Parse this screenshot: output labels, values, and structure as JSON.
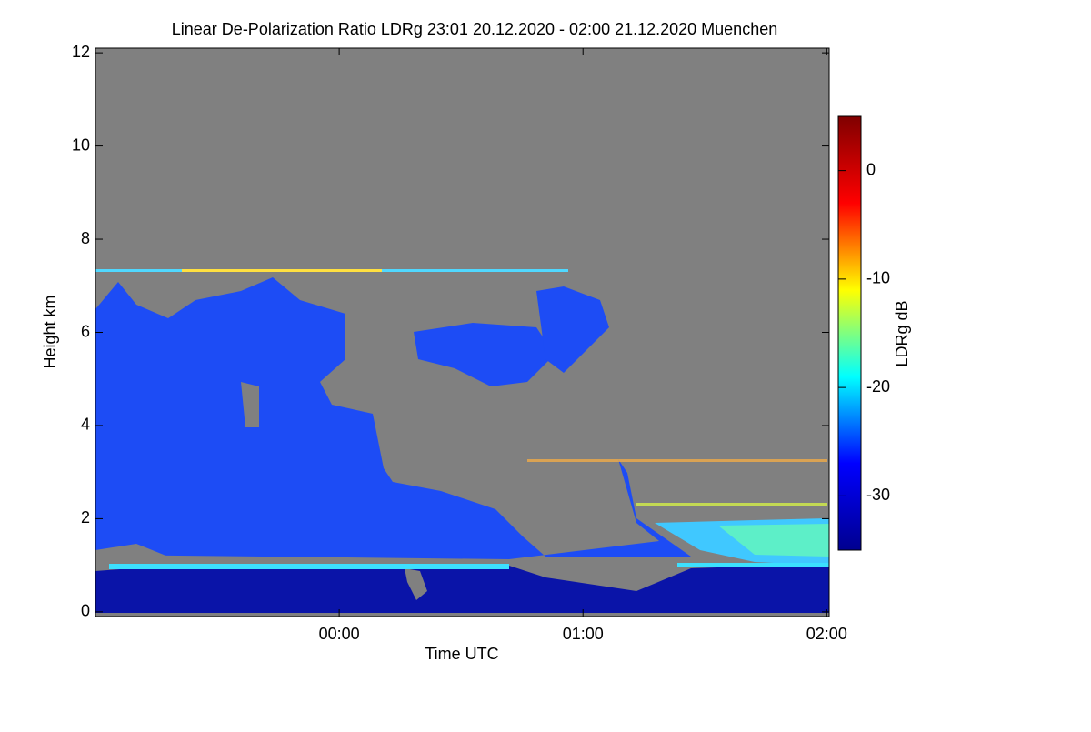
{
  "chart_data": {
    "type": "heatmap",
    "title": "Linear De-Polarization Ratio LDRg   23:01 20.12.2020 - 02:00 21.12.2020 Muenchen",
    "x_label": "Time UTC",
    "y_label": "Height km",
    "colorbar_label": "LDRg dB",
    "xlim": [
      23.0,
      26.01
    ],
    "xticks": [
      {
        "value": 24,
        "label": "00:00"
      },
      {
        "value": 25,
        "label": "01:00"
      },
      {
        "value": 26,
        "label": "02:00"
      }
    ],
    "ylim": [
      -0.1,
      12.1
    ],
    "yticks": [
      0,
      2,
      4,
      6,
      8,
      10,
      12
    ],
    "zlim": [
      -35,
      5
    ],
    "zticks": [
      0,
      -10,
      -20,
      -30
    ],
    "colormap": "jet",
    "background_color": "#808080"
  }
}
